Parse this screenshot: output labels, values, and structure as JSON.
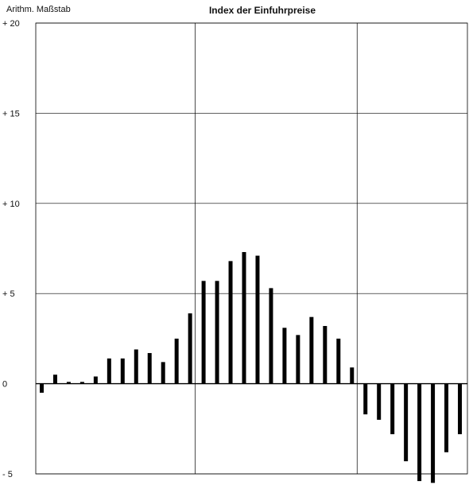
{
  "page": {
    "scale_label": "Arithm. Maßstab",
    "title": "Index der Einfuhrpreise"
  },
  "chart_data": {
    "type": "bar",
    "title": "Index der Einfuhrpreise",
    "xlabel": "",
    "ylabel": "",
    "ylim": [
      -5,
      20
    ],
    "yticks": [
      20,
      15,
      10,
      5,
      0,
      -5
    ],
    "ytick_labels": [
      "+ 20",
      "+ 15",
      "+ 10",
      "+ 5",
      "0",
      "- 5"
    ],
    "grid": true,
    "values": [
      -0.5,
      0.5,
      0.1,
      0.1,
      0.4,
      1.4,
      1.4,
      1.9,
      1.7,
      1.2,
      2.5,
      3.9,
      5.7,
      5.7,
      6.8,
      7.3,
      7.1,
      5.3,
      3.1,
      2.7,
      3.7,
      3.2,
      2.5,
      0.9,
      -1.7,
      -2.0,
      -2.8,
      -4.3,
      -5.4,
      -5.5,
      -3.8,
      -2.8
    ],
    "colors": {
      "bar": "#000000",
      "grid": "#000000",
      "background": "#ffffff"
    }
  }
}
